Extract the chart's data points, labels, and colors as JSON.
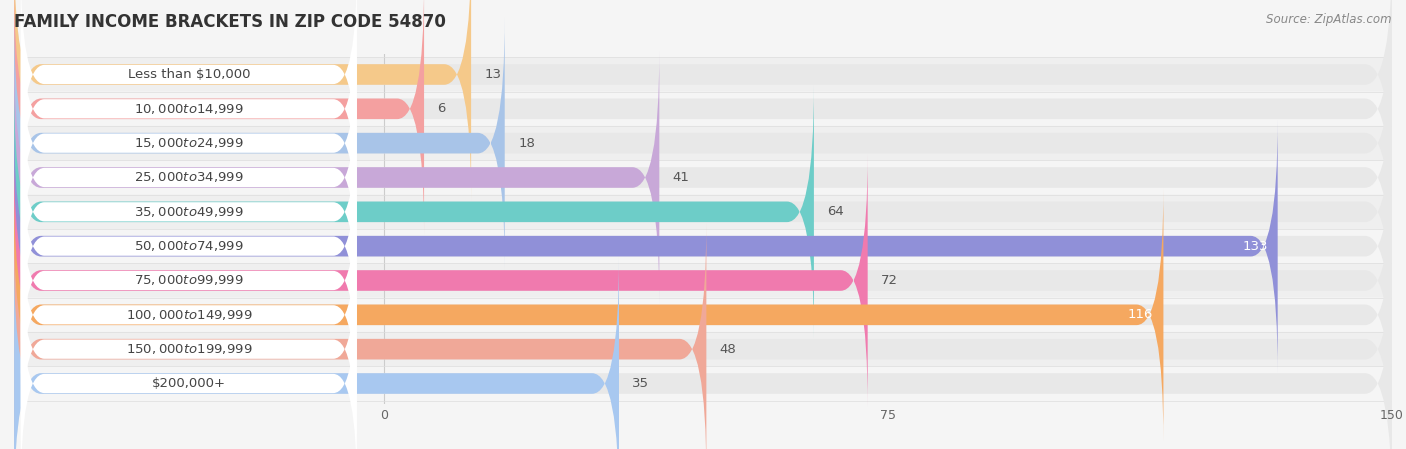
{
  "title": "FAMILY INCOME BRACKETS IN ZIP CODE 54870",
  "source": "Source: ZipAtlas.com",
  "categories": [
    "Less than $10,000",
    "$10,000 to $14,999",
    "$15,000 to $24,999",
    "$25,000 to $34,999",
    "$35,000 to $49,999",
    "$50,000 to $74,999",
    "$75,000 to $99,999",
    "$100,000 to $149,999",
    "$150,000 to $199,999",
    "$200,000+"
  ],
  "values": [
    13,
    6,
    18,
    41,
    64,
    133,
    72,
    116,
    48,
    35
  ],
  "bar_colors": [
    "#F5C98A",
    "#F4A0A0",
    "#A8C4E8",
    "#C8A8D8",
    "#6DCDC8",
    "#9090D8",
    "#F07AAE",
    "#F5A860",
    "#F0A898",
    "#A8C8F0"
  ],
  "background_color": "#f5f5f5",
  "bar_bg_color": "#e8e8e8",
  "row_colors": [
    "#efefef",
    "#f5f5f5"
  ],
  "xlim_data": [
    0,
    150
  ],
  "x_label_end": -40,
  "xticks": [
    0,
    75,
    150
  ],
  "title_fontsize": 12,
  "label_fontsize": 9.5,
  "value_fontsize": 9.5,
  "bar_height": 0.6,
  "figsize": [
    14.06,
    4.49
  ],
  "dpi": 100
}
